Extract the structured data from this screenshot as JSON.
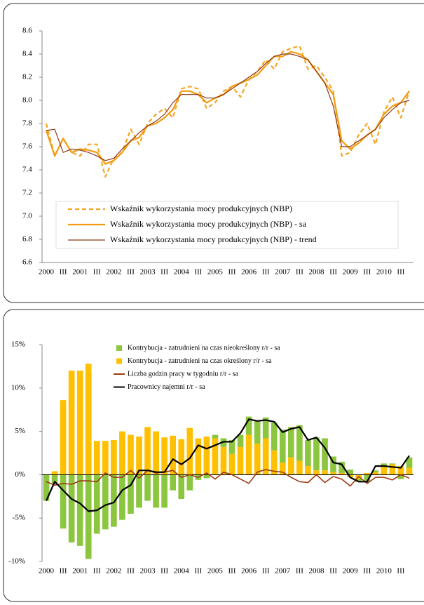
{
  "chart_data": [
    {
      "type": "line",
      "categories": [
        "2000",
        null,
        "III",
        null,
        "2001",
        null,
        "III",
        null,
        "2002",
        null,
        "III",
        null,
        "2003",
        null,
        "III",
        null,
        "2004",
        null,
        "III",
        null,
        "2005",
        null,
        "III",
        null,
        "2006",
        null,
        "III",
        null,
        "2007",
        null,
        "III",
        null,
        "2008",
        null,
        "III",
        null,
        "2009",
        null,
        "III",
        null,
        "2010",
        null,
        "III",
        null
      ],
      "ylim": [
        6.6,
        8.6
      ],
      "yticks": [
        6.6,
        6.8,
        {
          "value": 7,
          "label": "7.0"
        },
        7.2,
        7.4,
        7.6,
        7.8,
        {
          "value": 8,
          "label": "8.0"
        },
        8.2,
        8.4,
        8.6
      ],
      "grid": false,
      "legend": "bottom",
      "series": [
        {
          "name": "Wskaźnik wykorzystania mocy produkcyjnych (NBP)",
          "color": "#f5a623",
          "dashed": true,
          "values": [
            7.8,
            7.52,
            7.67,
            7.55,
            7.52,
            7.62,
            7.62,
            7.34,
            7.5,
            7.55,
            7.75,
            7.62,
            7.8,
            7.88,
            7.93,
            7.85,
            8.1,
            8.12,
            8.1,
            7.93,
            7.98,
            8.08,
            8.12,
            8.03,
            8.18,
            8.25,
            8.35,
            8.27,
            8.42,
            8.45,
            8.47,
            8.27,
            8.3,
            8.2,
            8.08,
            7.52,
            7.55,
            7.7,
            7.8,
            7.62,
            7.9,
            8.03,
            7.85,
            8.08
          ]
        },
        {
          "name": "Wskaźnik wykorzystania mocy produkcyjnych (NBP) - sa",
          "color": "#f39c12",
          "values": [
            7.74,
            7.52,
            7.67,
            7.55,
            7.58,
            7.57,
            7.55,
            7.45,
            7.48,
            7.55,
            7.65,
            7.68,
            7.78,
            7.8,
            7.85,
            7.92,
            8.08,
            8.08,
            8.05,
            7.98,
            8.02,
            8.05,
            8.12,
            8.15,
            8.18,
            8.22,
            8.3,
            8.38,
            8.38,
            8.42,
            8.4,
            8.35,
            8.25,
            8.15,
            8.05,
            7.65,
            7.58,
            7.63,
            7.7,
            7.75,
            7.88,
            7.95,
            7.98,
            8.08
          ]
        },
        {
          "name": "Wskaźnik wykorzystania mocy produkcyjnych (NBP) - trend",
          "color": "#8b3a1a",
          "values": [
            7.74,
            7.75,
            7.55,
            7.58,
            7.57,
            7.55,
            7.52,
            7.48,
            7.5,
            7.58,
            7.65,
            7.72,
            7.78,
            7.82,
            7.88,
            7.98,
            8.05,
            8.05,
            8.05,
            8.02,
            8.02,
            8.05,
            8.1,
            8.15,
            8.2,
            8.25,
            8.32,
            8.38,
            8.4,
            8.4,
            8.38,
            8.35,
            8.25,
            8.15,
            7.95,
            7.6,
            7.6,
            7.65,
            7.7,
            7.75,
            7.85,
            7.92,
            7.98,
            8.0
          ]
        }
      ]
    },
    {
      "type": "bar",
      "stacked": true,
      "categories": [
        "2000",
        null,
        "III",
        null,
        "2001",
        null,
        "III",
        null,
        "2002",
        null,
        "III",
        null,
        "2003",
        null,
        "III",
        null,
        "2004",
        null,
        "III",
        null,
        "2005",
        null,
        "III",
        null,
        "2006",
        null,
        "III",
        null,
        "2007",
        null,
        "III",
        null,
        "2008",
        null,
        "III",
        null,
        "2009",
        null,
        "III",
        null,
        "2010",
        null,
        "III",
        null
      ],
      "ylim": [
        -10,
        15
      ],
      "yticks": [
        {
          "value": -10,
          "label": "-10%"
        },
        {
          "value": -5,
          "label": "-5%"
        },
        {
          "value": 0,
          "label": "0%"
        },
        {
          "value": 5,
          "label": "5%"
        },
        {
          "value": 10,
          "label": "10%"
        },
        {
          "value": 15,
          "label": "15%"
        }
      ],
      "grid": false,
      "legend": "top",
      "series": [
        {
          "name": "Kontrybucja - zatrudnieni na czas nieokreślony r/r - sa",
          "color": "#8cc63f",
          "type": "bar",
          "values": [
            -3.0,
            -1.0,
            -6.2,
            -7.8,
            -8.2,
            -9.7,
            -6.8,
            -6.3,
            -6.0,
            -5.2,
            -4.5,
            -3.8,
            -3.0,
            -3.8,
            -3.8,
            -1.8,
            -2.8,
            -1.8,
            -0.6,
            -0.4,
            0.4,
            1.0,
            1.6,
            1.4,
            2.1,
            2.6,
            2.4,
            3.2,
            3.8,
            3.5,
            4.1,
            3.0,
            3.8,
            3.7,
            1.8,
            1.3,
            0.6,
            -0.3,
            -0.8,
            0.2,
            0.3,
            0.1,
            -0.5,
            1.2
          ]
        },
        {
          "name": "Kontrybucja - zatrudnieni na czas określony r/r - sa",
          "color": "#ffc000",
          "type": "bar",
          "values": [
            0,
            0.4,
            8.6,
            12.0,
            12.0,
            12.8,
            3.9,
            3.9,
            4.0,
            5.0,
            4.6,
            4.4,
            5.5,
            5.0,
            4.3,
            4.5,
            4.1,
            5.4,
            4.2,
            4.4,
            4.2,
            3.2,
            2.4,
            3.2,
            4.6,
            3.6,
            4.2,
            2.8,
            1.4,
            2.0,
            1.6,
            1.0,
            0.5,
            0.5,
            0.3,
            0.2,
            -0.3,
            -0.5,
            0.2,
            0.3,
            1.0,
            1.2,
            1.0,
            0.8
          ]
        },
        {
          "name": "Liczba godzin pracy w tygodniu r/r - sa",
          "color": "#9c3a12",
          "type": "line",
          "values": [
            -0.8,
            -1.2,
            -1.0,
            -1.1,
            -0.7,
            -0.7,
            -0.8,
            0.2,
            -0.3,
            -0.3,
            0.5,
            -0.4,
            0.5,
            0.2,
            0.3,
            0.5,
            -0.3,
            0.0,
            -0.3,
            0.2,
            -0.5,
            0.3,
            0.0,
            -0.5,
            -1.0,
            0.3,
            0.6,
            0.4,
            0.3,
            -0.3,
            -0.8,
            -0.9,
            0.0,
            -0.9,
            -0.2,
            -0.5,
            -1.3,
            -0.2,
            -1.0,
            -0.3,
            -0.3,
            -0.6,
            0.0,
            -0.4
          ]
        },
        {
          "name": "Pracownicy najemni r/r - sa",
          "color": "#000000",
          "type": "line",
          "values": [
            -3.0,
            -0.8,
            -1.8,
            -2.8,
            -3.3,
            -4.2,
            -4.1,
            -3.5,
            -3.2,
            -1.8,
            -1.2,
            0.5,
            0.5,
            0.3,
            0.3,
            1.8,
            1.2,
            1.9,
            3.4,
            3.0,
            3.4,
            3.8,
            3.8,
            4.8,
            6.4,
            6.2,
            6.3,
            6.1,
            4.9,
            5.3,
            5.5,
            4.0,
            4.3,
            3.1,
            1.4,
            1.2,
            -0.3,
            -0.8,
            -0.8,
            1.0,
            1.0,
            0.9,
            0.8,
            2.2
          ]
        }
      ]
    }
  ]
}
